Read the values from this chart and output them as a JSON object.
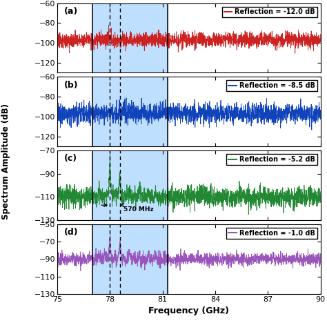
{
  "title": "",
  "xlabel": "Frequency (GHz)",
  "ylabel": "Spectrum Amplitude (dB)",
  "x_start": 75,
  "x_end": 90,
  "xticks": [
    75,
    78,
    81,
    84,
    87,
    90
  ],
  "panels": [
    {
      "label": "(a)",
      "y_min": -130,
      "y_max": -60,
      "yticks": [
        -120,
        -100,
        -80,
        -60
      ],
      "noise_level": -97,
      "noise_std": 3.8,
      "color": "#CC2222",
      "legend": "Reflection = -12.0 dB",
      "has_peak": false,
      "peak_freq": 78.0,
      "peak_height": -75,
      "peak2_height": -82,
      "osc_amp": 0,
      "outside_noise": 3.8
    },
    {
      "label": "(b)",
      "y_min": -130,
      "y_max": -60,
      "yticks": [
        -120,
        -100,
        -80,
        -60
      ],
      "noise_level": -97,
      "noise_std": 5.0,
      "color": "#1144BB",
      "legend": "Reflection = -8.5 dB",
      "has_peak": false,
      "peak_freq": 78.0,
      "peak_height": -75,
      "peak2_height": -82,
      "osc_amp": 0,
      "outside_noise": 5.0
    },
    {
      "label": "(c)",
      "y_min": -130,
      "y_max": -70,
      "yticks": [
        -130,
        -110,
        -90,
        -70
      ],
      "noise_level": -110,
      "noise_std": 3.5,
      "color": "#228833",
      "legend": "Reflection = -5.2 dB",
      "has_peak": true,
      "peak_freq": 78.0,
      "peak_height": -77,
      "peak2_height": -94,
      "osc_amp": 6,
      "outside_noise": 4.5,
      "annotation": "570 MHz"
    },
    {
      "label": "(d)",
      "y_min": -130,
      "y_max": -50,
      "yticks": [
        -130,
        -110,
        -90,
        -70,
        -50
      ],
      "noise_level": -90,
      "noise_std": 4.0,
      "color": "#9955BB",
      "legend": "Reflection = -1.0 dB",
      "has_peak": true,
      "peak_freq": 78.0,
      "peak_height": -65,
      "peak2_height": -82,
      "osc_amp": 10,
      "outside_noise": 3.5
    }
  ],
  "blue_region_start": 77.0,
  "blue_region_end": 81.3,
  "solid_lines": [
    77.0,
    81.3
  ],
  "dashed_lines": [
    78.0,
    78.57
  ],
  "blue_color": "#BFDFFF",
  "seed": 12345
}
